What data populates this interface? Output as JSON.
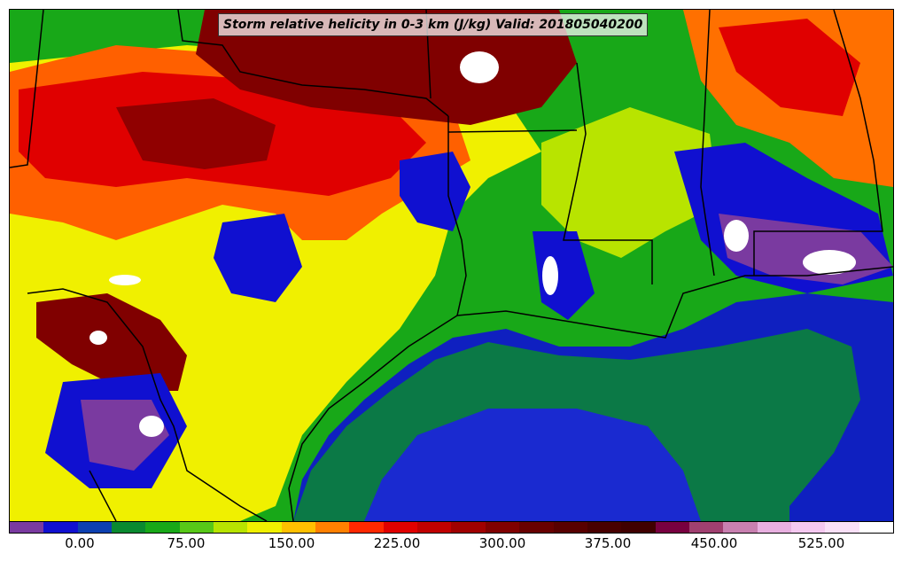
{
  "title": "Storm relative helicity in 0-3 km (J/kg) Valid: 201805040200",
  "colors": {
    "background": "#ffffff",
    "gulf": "#1020c0",
    "land_low": "#12a020",
    "land_mid": "#f0f000",
    "land_high": "#8a0000",
    "peak": "#ffffff"
  },
  "colorbar": {
    "segments": [
      "#7a3aa0",
      "#1010d0",
      "#0c40b0",
      "#0a8a30",
      "#18a818",
      "#58c818",
      "#b8e400",
      "#f0f000",
      "#ffc000",
      "#ff8000",
      "#ff2800",
      "#e00000",
      "#c00000",
      "#a00000",
      "#800000",
      "#680000",
      "#580000",
      "#480000",
      "#400000",
      "#780040",
      "#a04070",
      "#c880b0",
      "#e8b0e0",
      "#f4c8f0",
      "#fae0f8",
      "#ffffff"
    ],
    "tick_labels": [
      "0.00",
      "75.00",
      "150.00",
      "225.00",
      "300.00",
      "375.00",
      "450.00",
      "525.00"
    ]
  }
}
